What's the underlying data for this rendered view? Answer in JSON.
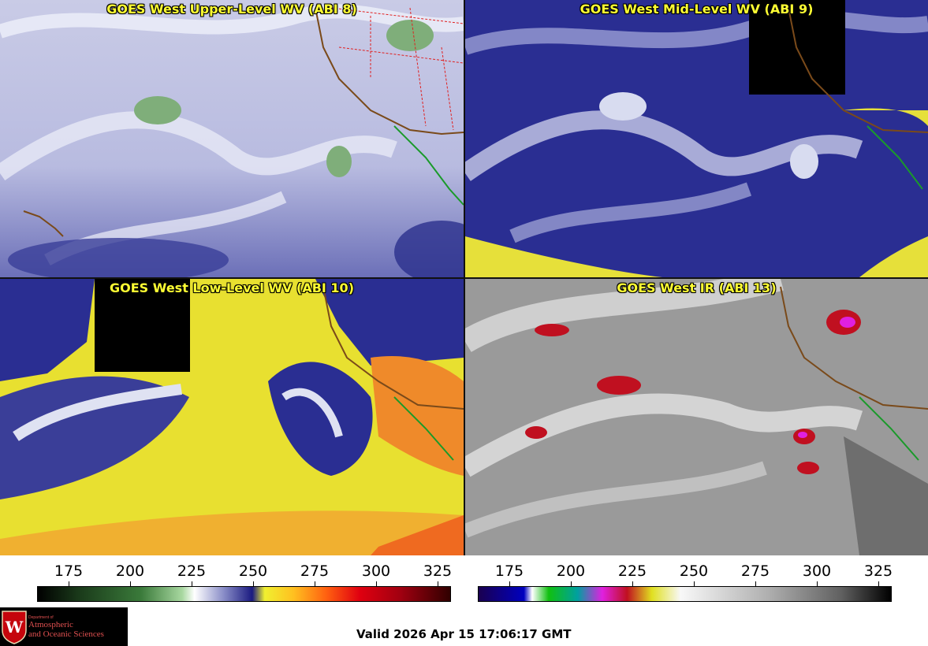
{
  "panels": {
    "upper_wv": {
      "title": "GOES West Upper-Level WV (ABI 8)"
    },
    "mid_wv": {
      "title": "GOES West Mid-Level WV (ABI 9)"
    },
    "low_wv": {
      "title": "GOES West Low-Level WV (ABI 10)"
    },
    "ir": {
      "title": "GOES West IR (ABI 13)"
    }
  },
  "colorbars": {
    "wv_ticks": [
      "175",
      "200",
      "225",
      "250",
      "275",
      "300",
      "325"
    ],
    "ir_ticks": [
      "175",
      "200",
      "225",
      "250",
      "275",
      "300",
      "325"
    ]
  },
  "logo": {
    "line1": "Department of",
    "line2": "Atmospheric",
    "line3": "and Oceanic Sciences",
    "seal_letter": "W"
  },
  "footer": {
    "valid": "Valid 2026 Apr 15 17:06:17 GMT"
  }
}
